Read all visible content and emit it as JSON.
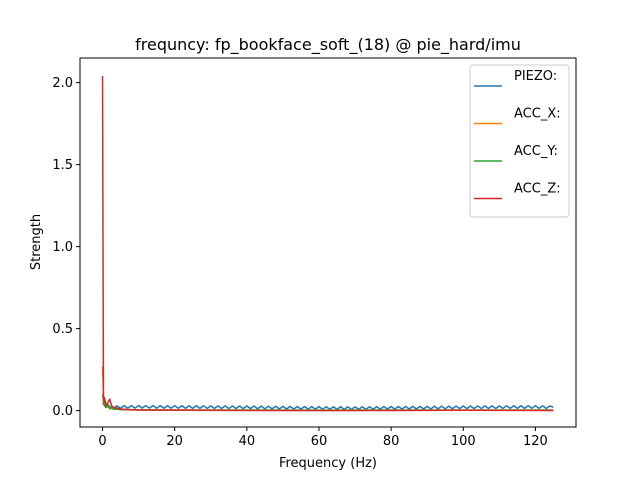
{
  "chart_data": {
    "type": "line",
    "title": "frequncy: fp_bookface_soft_(18) @ pie_hard/imu",
    "xlabel": "Frequency (Hz)",
    "ylabel": "Strength",
    "xlim": [
      -6.25,
      131.25
    ],
    "ylim": [
      -0.1,
      2.15
    ],
    "xticks": [
      0,
      20,
      40,
      60,
      80,
      100,
      120
    ],
    "yticks": [
      0.0,
      0.5,
      1.0,
      1.5,
      2.0
    ],
    "xtick_labels": [
      "0",
      "20",
      "40",
      "60",
      "80",
      "100",
      "120"
    ],
    "ytick_labels": [
      "0.0",
      "0.5",
      "1.0",
      "1.5",
      "2.0"
    ],
    "grid": false,
    "legend_position": "top-right",
    "series": [
      {
        "name": "PIEZO:",
        "color": "#1f77b4",
        "x": [
          0,
          0.5,
          1,
          2,
          3,
          5,
          10,
          20,
          30,
          40,
          50,
          60,
          70,
          80,
          90,
          100,
          110,
          120,
          125
        ],
        "y": [
          0.05,
          0.03,
          0.02,
          0.025,
          0.02,
          0.022,
          0.023,
          0.022,
          0.021,
          0.02,
          0.018,
          0.016,
          0.015,
          0.017,
          0.018,
          0.02,
          0.021,
          0.022,
          0.02
        ],
        "zigzag": 0.008
      },
      {
        "name": "ACC_X:",
        "color": "#ff7f0e",
        "x": [
          0,
          0.3,
          0.6,
          1,
          1.5,
          2,
          3,
          5,
          10,
          20,
          40,
          60,
          80,
          100,
          125
        ],
        "y": [
          0.27,
          0.05,
          0.03,
          0.02,
          0.025,
          0.015,
          0.01,
          0.008,
          0.005,
          0.004,
          0.003,
          0.003,
          0.003,
          0.003,
          0.003
        ],
        "zigzag": 0.0
      },
      {
        "name": "ACC_Y:",
        "color": "#2ca02c",
        "x": [
          0,
          0.3,
          0.6,
          1,
          1.5,
          2,
          2.5,
          3,
          4,
          5,
          10,
          20,
          40,
          60,
          80,
          100,
          125
        ],
        "y": [
          0.1,
          0.06,
          0.03,
          0.02,
          0.04,
          0.01,
          0.02,
          0.01,
          0.008,
          0.006,
          0.004,
          0.003,
          0.003,
          0.002,
          0.003,
          0.003,
          0.003
        ],
        "zigzag": 0.0
      },
      {
        "name": "ACC_Z:",
        "color": "#d62728",
        "x": [
          0,
          0.25,
          0.5,
          1,
          1.5,
          2,
          2.5,
          3,
          4,
          5,
          7,
          10,
          15,
          20,
          40,
          60,
          80,
          100,
          125
        ],
        "y": [
          2.04,
          0.06,
          0.08,
          0.03,
          0.05,
          0.07,
          0.03,
          0.02,
          0.015,
          0.01,
          0.006,
          0.004,
          0.003,
          0.003,
          0.001,
          0.0,
          0.001,
          0.002,
          0.001
        ],
        "zigzag": 0.0
      }
    ]
  }
}
